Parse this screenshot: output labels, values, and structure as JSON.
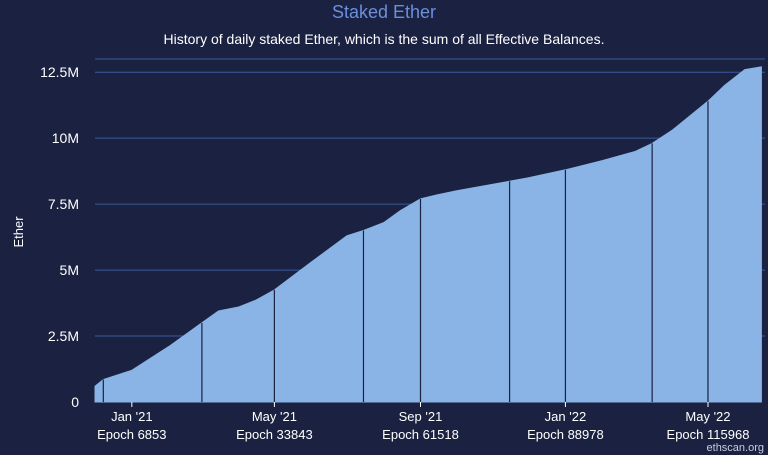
{
  "chart_data": {
    "type": "area",
    "title": "Staked Ether",
    "subtitle": "History of daily staked Ether, which is the sum of all Effective Balances.",
    "ylabel": "Ether",
    "xlabel": "",
    "ylim": [
      0,
      13000000
    ],
    "yticks": [
      {
        "value": 0,
        "label": "0"
      },
      {
        "value": 2500000,
        "label": "2.5M"
      },
      {
        "value": 5000000,
        "label": "5M"
      },
      {
        "value": 7500000,
        "label": "7.5M"
      },
      {
        "value": 10000000,
        "label": "10M"
      },
      {
        "value": 12500000,
        "label": "12.5M"
      }
    ],
    "xticks": [
      {
        "date": "2021-01-01",
        "label": "Jan '21",
        "epoch": "Epoch 6853"
      },
      {
        "date": "2021-05-01",
        "label": "May '21",
        "epoch": "Epoch 33843"
      },
      {
        "date": "2021-09-01",
        "label": "Sep '21",
        "epoch": "Epoch 61518"
      },
      {
        "date": "2022-01-01",
        "label": "Jan '22",
        "epoch": "Epoch 88978"
      },
      {
        "date": "2022-05-01",
        "label": "May '22",
        "epoch": "Epoch 115968"
      }
    ],
    "xlim": [
      "2020-12-01",
      "2022-06-18"
    ],
    "grid": true,
    "series": [
      {
        "x": [
          "2020-12-01",
          "2020-12-08",
          "2021-01-01",
          "2021-02-01",
          "2021-03-01",
          "2021-03-15",
          "2021-04-01",
          "2021-04-15",
          "2021-05-01",
          "2021-06-01",
          "2021-07-01",
          "2021-07-15",
          "2021-08-01",
          "2021-08-15",
          "2021-09-01",
          "2021-09-15",
          "2021-10-01",
          "2021-11-01",
          "2021-12-01",
          "2022-01-01",
          "2022-02-01",
          "2022-03-01",
          "2022-03-15",
          "2022-04-01",
          "2022-05-01",
          "2022-05-15",
          "2022-06-01",
          "2022-06-15"
        ],
        "values": [
          600000,
          850000,
          1200000,
          2100000,
          3000000,
          3450000,
          3600000,
          3850000,
          4250000,
          5300000,
          6300000,
          6500000,
          6800000,
          7250000,
          7700000,
          7850000,
          8000000,
          8250000,
          8500000,
          8800000,
          9150000,
          9500000,
          9800000,
          10300000,
          11400000,
          12000000,
          12600000,
          12700000
        ]
      }
    ],
    "colors": {
      "background": "#1b2140",
      "fill": "#8ab4e6",
      "grid": "#3a5ba0",
      "title": "#6a8fdd"
    },
    "watermark": "ethscan.org"
  }
}
